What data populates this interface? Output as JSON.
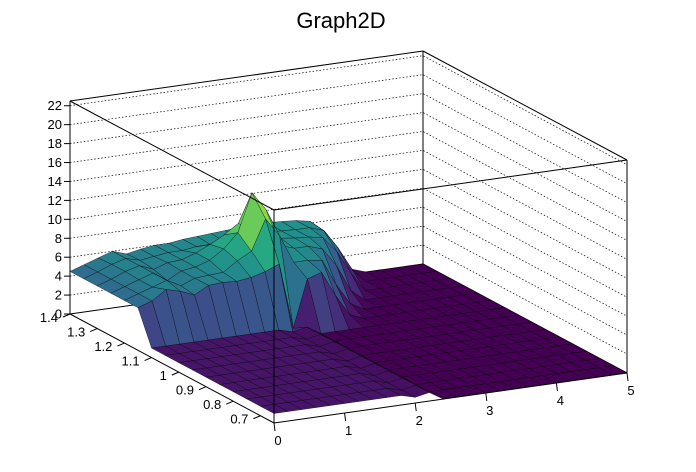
{
  "chart_data": {
    "type": "surface",
    "title": "Graph2D",
    "x_ticks": [
      "0",
      "1",
      "2",
      "3",
      "4",
      "5"
    ],
    "y_ticks": [
      "0.7",
      "0.8",
      "0.9",
      "1",
      "1.1",
      "1.2",
      "1.3",
      "1.4"
    ],
    "z_ticks": [
      "0",
      "2",
      "4",
      "6",
      "8",
      "10",
      "12",
      "14",
      "16",
      "18",
      "20",
      "22"
    ],
    "xlim": [
      0,
      5
    ],
    "ylim": [
      0.65,
      1.4
    ],
    "zlim": [
      0,
      22.5
    ],
    "x_grid": [
      0,
      0.2,
      0.4,
      0.6,
      0.8,
      1.0,
      1.2,
      1.4,
      1.6,
      1.8,
      2.0,
      2.2,
      2.4,
      2.6,
      2.8,
      3.0,
      3.2,
      3.4,
      3.6,
      3.8,
      4.0,
      4.2,
      4.4,
      4.6,
      4.8,
      5.0
    ],
    "y_grid": [
      0.65,
      0.7,
      0.75,
      0.8,
      0.85,
      0.9,
      0.95,
      1.0,
      1.05,
      1.1,
      1.15,
      1.2,
      1.25,
      1.3,
      1.35,
      1.4
    ],
    "z_values": [
      [
        1.0,
        1.0,
        1.0,
        1.0,
        1.0,
        1.0,
        1.0,
        1.0,
        1.0,
        1.0,
        0.6,
        0.9,
        0.0,
        0.0,
        0.0,
        0.0,
        0.0,
        0.0,
        0.0,
        0.0,
        0.0,
        0.0,
        0.0,
        0.0,
        0.0,
        0.0
      ],
      [
        1.0,
        1.0,
        1.0,
        1.0,
        1.0,
        1.0,
        1.0,
        1.0,
        1.0,
        1.0,
        0.6,
        0.9,
        0.0,
        0.0,
        0.0,
        0.0,
        0.0,
        0.0,
        0.0,
        0.0,
        0.0,
        0.0,
        0.0,
        0.0,
        0.0,
        0.0
      ],
      [
        1.0,
        1.0,
        1.0,
        1.0,
        1.0,
        1.0,
        1.0,
        1.0,
        1.0,
        1.0,
        0.6,
        0.9,
        0.0,
        0.0,
        0.0,
        0.0,
        0.0,
        0.0,
        0.0,
        0.0,
        0.0,
        0.0,
        0.0,
        0.0,
        0.0,
        0.0
      ],
      [
        1.0,
        1.0,
        1.0,
        1.0,
        1.0,
        1.0,
        1.0,
        1.0,
        1.0,
        1.0,
        0.6,
        0.9,
        0.0,
        0.0,
        0.0,
        0.0,
        0.0,
        0.0,
        0.0,
        0.0,
        0.0,
        0.0,
        0.0,
        0.0,
        0.0,
        0.0
      ],
      [
        1.0,
        1.0,
        1.0,
        1.0,
        1.0,
        1.0,
        1.0,
        1.0,
        1.0,
        1.0,
        0.6,
        0.9,
        0.0,
        0.0,
        0.0,
        0.0,
        0.0,
        0.0,
        0.0,
        0.0,
        0.0,
        0.0,
        0.0,
        0.0,
        0.0,
        0.0
      ],
      [
        1.0,
        1.0,
        1.0,
        1.0,
        1.0,
        1.0,
        1.0,
        1.0,
        1.0,
        1.0,
        0.6,
        0.9,
        0.0,
        0.0,
        0.0,
        0.0,
        0.0,
        0.0,
        0.0,
        0.0,
        0.0,
        0.0,
        0.0,
        0.0,
        0.0,
        0.0
      ],
      [
        1.0,
        1.0,
        1.0,
        1.0,
        1.0,
        1.0,
        1.0,
        1.0,
        1.0,
        1.0,
        0.6,
        0.9,
        0.0,
        0.0,
        0.0,
        0.0,
        0.0,
        0.0,
        0.0,
        0.0,
        0.0,
        0.0,
        0.0,
        0.0,
        0.0,
        0.0
      ],
      [
        1.0,
        1.0,
        1.0,
        1.0,
        1.0,
        1.0,
        1.0,
        1.0,
        1.0,
        1.0,
        0.6,
        0.9,
        0.0,
        0.0,
        0.0,
        0.0,
        0.0,
        0.0,
        0.0,
        0.0,
        0.0,
        0.0,
        0.0,
        0.0,
        0.0,
        0.0
      ],
      [
        1.0,
        1.0,
        1.0,
        1.0,
        1.0,
        1.0,
        1.0,
        1.0,
        1.0,
        1.0,
        0.6,
        0.9,
        0.0,
        0.0,
        0.0,
        0.0,
        0.0,
        0.0,
        0.0,
        0.0,
        0.0,
        0.0,
        0.0,
        0.0,
        0.0,
        0.0
      ],
      [
        1.0,
        1.0,
        1.0,
        1.0,
        1.0,
        1.0,
        1.0,
        1.0,
        1.0,
        1.0,
        0.6,
        0.9,
        0.0,
        0.0,
        0.0,
        0.0,
        0.0,
        0.0,
        0.0,
        0.0,
        0.0,
        0.0,
        0.0,
        0.0,
        0.0,
        0.0
      ],
      [
        4.5,
        5.0,
        6.0,
        5.6,
        5.0,
        5.8,
        5.9,
        5.8,
        6.0,
        6.4,
        7.0,
        0.0,
        5.0,
        5.5,
        2.8,
        0.6,
        0.0,
        0.0,
        0.0,
        0.0,
        0.0,
        0.0,
        0.0,
        0.0,
        0.0,
        0.0
      ],
      [
        4.5,
        5.0,
        5.5,
        6.0,
        5.2,
        5.8,
        5.9,
        6.0,
        7.0,
        7.8,
        11.0,
        9.0,
        6.0,
        6.0,
        5.8,
        3.0,
        0.8,
        0.0,
        0.0,
        0.0,
        0.0,
        0.0,
        0.0,
        0.0,
        0.0,
        0.0
      ],
      [
        4.5,
        5.0,
        5.5,
        6.0,
        5.0,
        5.8,
        6.0,
        6.5,
        7.5,
        9.0,
        13.0,
        11.0,
        7.0,
        6.5,
        6.5,
        6.0,
        4.0,
        1.2,
        0.0,
        0.0,
        0.0,
        0.0,
        0.0,
        0.0,
        0.0,
        0.0
      ],
      [
        4.5,
        5.0,
        5.6,
        6.0,
        5.4,
        5.9,
        6.0,
        6.5,
        7.2,
        8.0,
        9.0,
        8.0,
        7.0,
        6.8,
        6.6,
        6.5,
        6.2,
        4.5,
        2.0,
        0.0,
        0.0,
        0.0,
        0.0,
        0.0,
        0.0,
        0.0
      ],
      [
        4.5,
        5.0,
        5.6,
        6.0,
        5.6,
        5.8,
        6.0,
        6.0,
        6.2,
        6.2,
        6.3,
        6.4,
        6.5,
        6.6,
        6.6,
        6.5,
        6.5,
        6.0,
        4.0,
        1.5,
        0.0,
        0.0,
        0.0,
        0.0,
        0.0,
        0.0
      ],
      [
        4.5,
        5.0,
        5.5,
        6.0,
        5.5,
        5.8,
        6.0,
        6.0,
        6.2,
        6.3,
        6.4,
        6.5,
        6.6,
        6.7,
        6.7,
        6.6,
        6.5,
        6.2,
        5.0,
        2.5,
        0.5,
        0.0,
        0.0,
        0.0,
        0.0,
        0.0
      ]
    ]
  }
}
